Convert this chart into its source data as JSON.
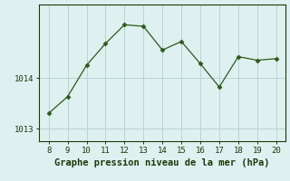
{
  "x": [
    8,
    9,
    10,
    11,
    12,
    13,
    14,
    15,
    16,
    17,
    18,
    19,
    20
  ],
  "y": [
    1013.3,
    1013.63,
    1014.25,
    1014.68,
    1015.05,
    1015.02,
    1014.55,
    1014.72,
    1014.28,
    1013.82,
    1014.42,
    1014.35,
    1014.38
  ],
  "line_color": "#2d5a1b",
  "marker": "D",
  "marker_size": 2.5,
  "bg_color": "#dff0f0",
  "grid_color": "#b8d4d4",
  "xlabel": "Graphe pression niveau de la mer (hPa)",
  "xlabel_color": "#1a3a0a",
  "xlabel_fontsize": 7.5,
  "tick_color": "#1a3a0a",
  "tick_fontsize": 6.5,
  "ytick_labels": [
    "1013",
    "1014"
  ],
  "ytick_values": [
    1013,
    1014
  ],
  "xlim": [
    7.5,
    20.5
  ],
  "ylim": [
    1012.75,
    1015.45
  ],
  "xticks": [
    8,
    9,
    10,
    11,
    12,
    13,
    14,
    15,
    16,
    17,
    18,
    19,
    20
  ]
}
